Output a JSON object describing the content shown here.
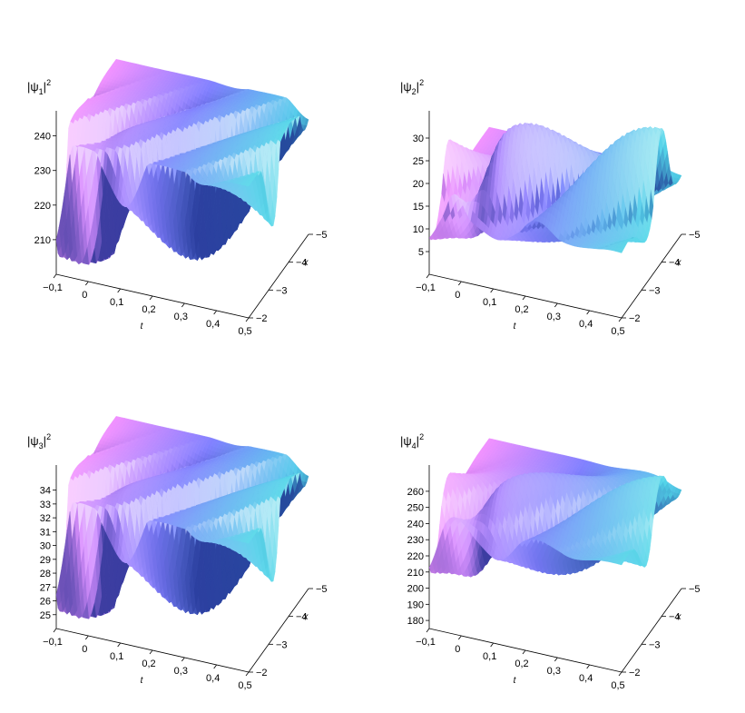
{
  "chart_data": [
    {
      "type": "surface",
      "zlabel_base": "|ψ",
      "zlabel_sub": "1",
      "zlabel_sup": "2",
      "zticks": [
        "240",
        "230",
        "220",
        "210"
      ],
      "tticks": [
        "−0,1",
        "0",
        "0,1",
        "0,2",
        "0,3",
        "0,4",
        "0,5"
      ],
      "xticks": [
        "−2",
        "−3",
        "−4",
        "−5"
      ],
      "tlabel": "t",
      "xlabel": "x",
      "xlim": [
        -5,
        -2
      ],
      "tlim": [
        -0.1,
        0.5
      ],
      "zlim": [
        200,
        242
      ],
      "plane_level": 238,
      "colors": [
        "#f090ff",
        "#8080ff",
        "#4a58e6",
        "#1a2a8a",
        "#50d8e8"
      ]
    },
    {
      "type": "surface",
      "zlabel_base": "|ψ",
      "zlabel_sub": "2",
      "zlabel_sup": "2",
      "zticks": [
        "30",
        "25",
        "20",
        "15",
        "10",
        "5"
      ],
      "tticks": [
        "−0,1",
        "0",
        "0,1",
        "0,2",
        "0,3",
        "0,4",
        "0,5"
      ],
      "xticks": [
        "−2",
        "−3",
        "−4",
        "−5"
      ],
      "tlabel": "t",
      "xlabel": "x",
      "xlim": [
        -5,
        -2
      ],
      "tlim": [
        -0.1,
        0.5
      ],
      "zlim": [
        0,
        32
      ],
      "plane_level": 14,
      "colors": [
        "#f090ff",
        "#8080ff",
        "#4a58e6",
        "#1a2a8a",
        "#50d8e8"
      ]
    },
    {
      "type": "surface",
      "zlabel_base": "|ψ",
      "zlabel_sub": "3",
      "zlabel_sup": "2",
      "zticks": [
        "34",
        "33",
        "32",
        "31",
        "30",
        "29",
        "28",
        "27",
        "26",
        "25"
      ],
      "tticks": [
        "−0,1",
        "0",
        "0,1",
        "0,2",
        "0,3",
        "0,4",
        "0,5"
      ],
      "xticks": [
        "−2",
        "−3",
        "−4",
        "−5"
      ],
      "tlabel": "t",
      "xlabel": "x",
      "xlim": [
        -5,
        -2
      ],
      "tlim": [
        -0.1,
        0.5
      ],
      "zlim": [
        24,
        34.5
      ],
      "plane_level": 33.3,
      "colors": [
        "#f090ff",
        "#8080ff",
        "#4a58e6",
        "#1a2a8a",
        "#50d8e8"
      ]
    },
    {
      "type": "surface",
      "zlabel_base": "|ψ",
      "zlabel_sub": "4",
      "zlabel_sup": "2",
      "zticks": [
        "260",
        "250",
        "240",
        "230",
        "220",
        "210",
        "200",
        "190",
        "180"
      ],
      "tticks": [
        "−0,1",
        "0",
        "0,1",
        "0,2",
        "0,3",
        "0,4",
        "0,5"
      ],
      "xticks": [
        "−2",
        "−3",
        "−4",
        "−5"
      ],
      "tlabel": "t",
      "xlabel": "x",
      "xlim": [
        -5,
        -2
      ],
      "tlim": [
        -0.1,
        0.5
      ],
      "zlim": [
        175,
        265
      ],
      "plane_level": 241,
      "colors": [
        "#f090ff",
        "#8080ff",
        "#4a58e6",
        "#1a2a8a",
        "#50d8e8"
      ]
    }
  ]
}
